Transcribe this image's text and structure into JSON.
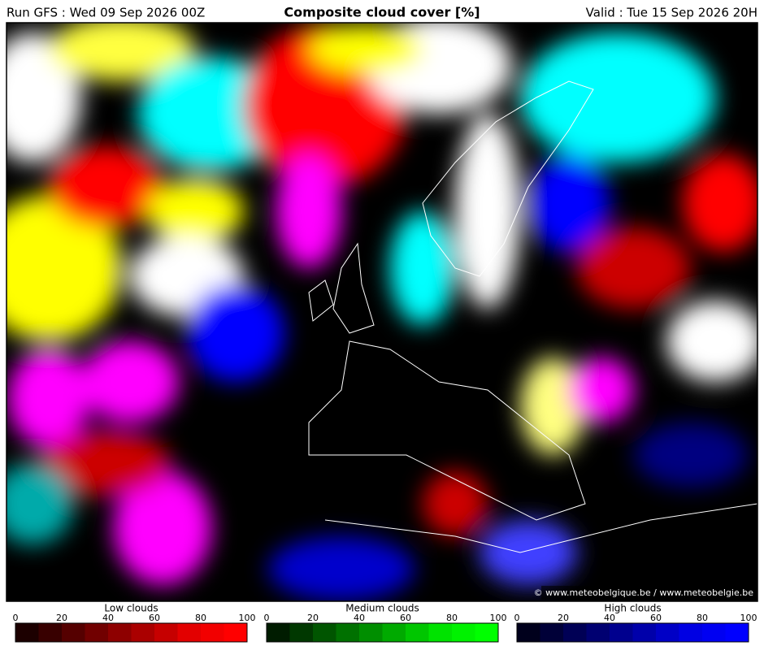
{
  "header": {
    "run": "Run GFS : Wed 09 Sep 2026 00Z",
    "title": "Composite cloud cover [%]",
    "valid": "Valid : Tue 15 Sep 2026 20H"
  },
  "copyright": "© www.meteobelgique.be / www.meteobelgie.be",
  "legends": [
    {
      "title": "Low clouds",
      "ticks": [
        0,
        20,
        40,
        60,
        80,
        100
      ],
      "colors": [
        "#1c0000",
        "#380000",
        "#550000",
        "#710000",
        "#8e0000",
        "#aa0000",
        "#c60000",
        "#e30000",
        "#f20000",
        "#ff0000"
      ]
    },
    {
      "title": "Medium clouds",
      "ticks": [
        0,
        20,
        40,
        60,
        80,
        100
      ],
      "colors": [
        "#001c00",
        "#003800",
        "#005500",
        "#007100",
        "#008e00",
        "#00aa00",
        "#00c600",
        "#00e300",
        "#00f200",
        "#00ff00"
      ]
    },
    {
      "title": "High clouds",
      "ticks": [
        0,
        20,
        40,
        60,
        80,
        100
      ],
      "colors": [
        "#00001c",
        "#000038",
        "#000055",
        "#000071",
        "#00008e",
        "#0000aa",
        "#0000c6",
        "#0000e3",
        "#0000f2",
        "#0000ff"
      ]
    }
  ]
}
